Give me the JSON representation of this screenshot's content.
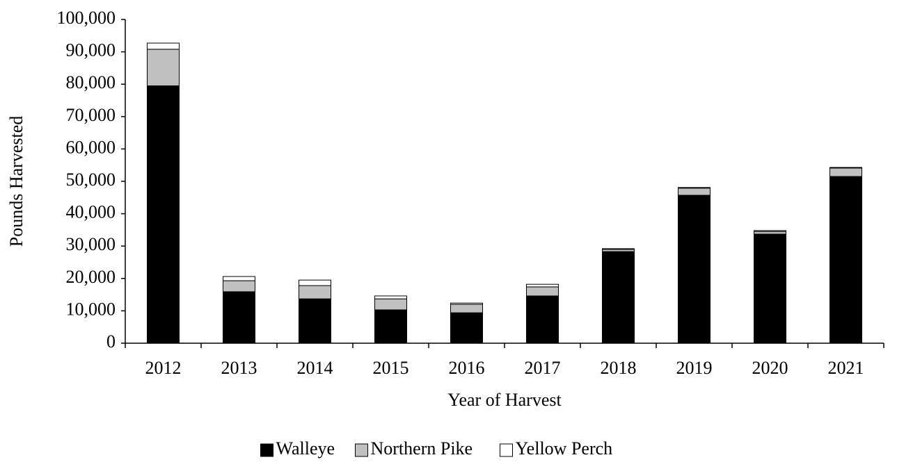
{
  "chart_data": {
    "type": "stacked-bar",
    "x_label": "Year of Harvest",
    "y_label": "Pounds Harvested",
    "categories": [
      "2012",
      "2013",
      "2014",
      "2015",
      "2016",
      "2017",
      "2018",
      "2019",
      "2020",
      "2021"
    ],
    "series": [
      {
        "name": "Walleye",
        "color": "#000000",
        "values": [
          79500,
          15900,
          13700,
          10300,
          9400,
          14600,
          28300,
          45700,
          33700,
          51500
        ]
      },
      {
        "name": "Northern Pike",
        "color": "#c0c0c0",
        "values": [
          11300,
          3400,
          4100,
          3400,
          2600,
          2800,
          700,
          2200,
          800,
          2600
        ]
      },
      {
        "name": "Yellow Perch",
        "color": "#ffffff",
        "values": [
          1900,
          1300,
          1700,
          900,
          400,
          800,
          200,
          200,
          300,
          200
        ]
      }
    ],
    "ylim": [
      0,
      100000
    ],
    "yticks": [
      0,
      {
        "value": 10000,
        "label": "10,000"
      },
      {
        "value": 20000,
        "label": "20,000"
      },
      {
        "value": 30000,
        "label": "30,000"
      },
      {
        "value": 40000,
        "label": "40,000"
      },
      {
        "value": 50000,
        "label": "50,000"
      },
      {
        "value": 60000,
        "label": "60,000"
      },
      {
        "value": 70000,
        "label": "70,000"
      },
      {
        "value": 80000,
        "label": "80,000"
      },
      {
        "value": 90000,
        "label": "90,000"
      },
      {
        "value": 100000,
        "label": "100,000"
      }
    ],
    "legend": "bottom"
  }
}
